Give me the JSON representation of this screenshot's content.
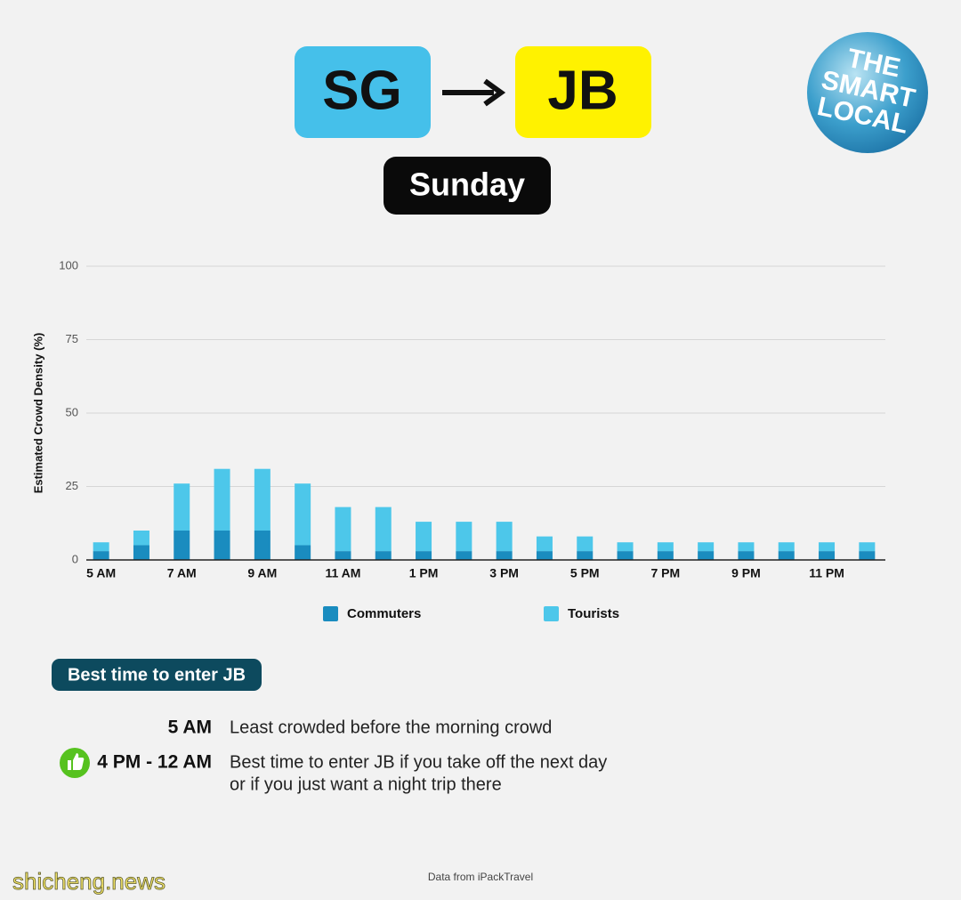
{
  "header": {
    "from": "SG",
    "to": "JB",
    "day": "Sunday",
    "logo": [
      "THE",
      "SMART",
      "LOCAL"
    ]
  },
  "chart_data": {
    "type": "stacked-bar",
    "y_label": "Estimated Crowd Density (%)",
    "categories": [
      "5 AM",
      null,
      "7 AM",
      null,
      "9 AM",
      null,
      "11 AM",
      null,
      "1 PM",
      null,
      "3 PM",
      null,
      "5 PM",
      null,
      "7 PM",
      null,
      "9 PM",
      null,
      "11 PM",
      null
    ],
    "series": [
      {
        "name": "Commuters",
        "color": "#1a8cbf",
        "values": [
          3,
          5,
          10,
          10,
          10,
          5,
          3,
          3,
          3,
          3,
          3,
          3,
          3,
          3,
          3,
          3,
          3,
          3,
          3,
          3
        ]
      },
      {
        "name": "Tourists",
        "color": "#4dc7ea",
        "values": [
          3,
          5,
          16,
          21,
          21,
          21,
          15,
          15,
          10,
          10,
          10,
          5,
          5,
          3,
          3,
          3,
          3,
          3,
          3,
          3
        ]
      }
    ],
    "ylim": [
      0,
      100
    ],
    "yticks": [
      0,
      25,
      50,
      75,
      100
    ],
    "grid": true
  },
  "best_times": {
    "title": "Best time to enter JB",
    "rows": [
      {
        "time": "5 AM",
        "lines": [
          "Least crowded before the morning crowd"
        ]
      },
      {
        "time": "4 PM - 12 AM",
        "lines": [
          "Best time to enter JB if you take off the next day",
          "or if you just want a night trip there"
        ]
      }
    ]
  },
  "footer": {
    "source": "Data from iPackTravel",
    "watermark": "shicheng.news"
  }
}
